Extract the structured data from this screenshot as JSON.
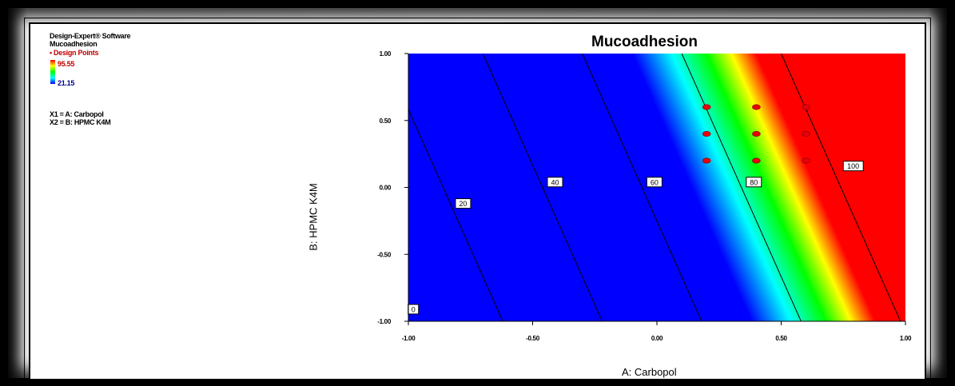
{
  "info": {
    "software": "Design-Expert® Software",
    "response": "Mucoadhesion",
    "design_points_label": "• Design Points",
    "legend_max": "95.55",
    "legend_min": "21.15",
    "factor_x1": "X1 = A: Carbopol",
    "factor_x2": "X2 = B: HPMC K4M"
  },
  "colors": {
    "design_point": "#e8000a",
    "legend_max_text": "#c00000",
    "legend_min_text": "#00008b",
    "contour_line": "#000000"
  },
  "chart_data": {
    "type": "contour",
    "title": "Mucoadhesion",
    "xlabel": "A: Carbopol",
    "ylabel": "B: HPMC K4M",
    "xlim": [
      -1.0,
      1.0
    ],
    "ylim": [
      -1.0,
      1.0
    ],
    "x_ticks": [
      "-1.00",
      "-0.50",
      "0.00",
      "0.50",
      "1.00"
    ],
    "y_ticks": [
      "1.00",
      "0.50",
      "0.00",
      "-0.50",
      "-1.00"
    ],
    "color_scale": {
      "min": 21.15,
      "max": 95.55,
      "stops": [
        {
          "value": 70,
          "color": "#0000ff"
        },
        {
          "value": 78,
          "color": "#00ffff"
        },
        {
          "value": 85,
          "color": "#00ff00"
        },
        {
          "value": 90,
          "color": "#ffff00"
        },
        {
          "value": 95,
          "color": "#ff0000"
        }
      ]
    },
    "model": {
      "intercept": 63.0,
      "coef_A": 50.0,
      "coef_B": 12.0
    },
    "contours": [
      {
        "value": 0,
        "label": "0",
        "label_at": [
          -0.98,
          -0.91
        ]
      },
      {
        "value": 20,
        "label": "20",
        "label_at": [
          -0.78,
          -0.12
        ]
      },
      {
        "value": 40,
        "label": "40",
        "label_at": [
          -0.41,
          0.04
        ]
      },
      {
        "value": 60,
        "label": "60",
        "label_at": [
          -0.01,
          0.04
        ]
      },
      {
        "value": 80,
        "label": "80",
        "label_at": [
          0.39,
          0.04
        ]
      },
      {
        "value": 100,
        "label": "100",
        "label_at": [
          0.79,
          0.16
        ]
      }
    ],
    "design_points": [
      {
        "x": 0.2,
        "y": 0.6
      },
      {
        "x": 0.4,
        "y": 0.6
      },
      {
        "x": 0.6,
        "y": 0.6
      },
      {
        "x": 0.2,
        "y": 0.4
      },
      {
        "x": 0.4,
        "y": 0.4
      },
      {
        "x": 0.6,
        "y": 0.4
      },
      {
        "x": 0.2,
        "y": 0.2
      },
      {
        "x": 0.4,
        "y": 0.2
      },
      {
        "x": 0.6,
        "y": 0.2
      }
    ]
  }
}
